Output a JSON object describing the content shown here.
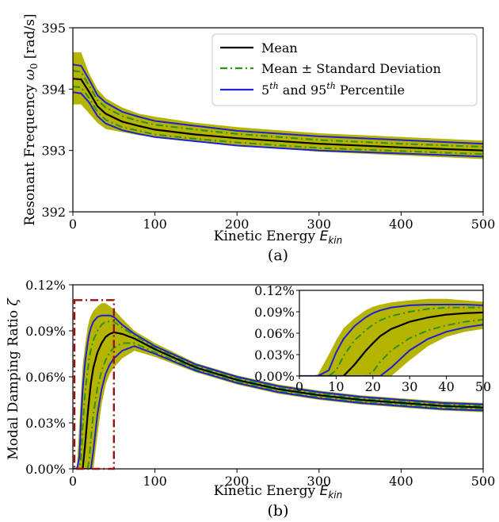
{
  "colors": {
    "band": "#b5b400",
    "mean": "#000000",
    "std": "#2f8f1f",
    "percentile": "#1f1fd6",
    "zoom_box": "#9b1111"
  },
  "chart_data": [
    {
      "type": "line",
      "panel_label": "(a)",
      "xlabel": "Kinetic Energy E_kin",
      "ylabel": "Resonant Frequency ω_0 [rad/s]",
      "xlim": [
        0,
        500
      ],
      "ylim": [
        392,
        395
      ],
      "xticks": [
        0,
        100,
        200,
        300,
        400,
        500
      ],
      "yticks": [
        392,
        393,
        394,
        395
      ],
      "ytick_labels": [
        "392",
        "393",
        "394",
        "395"
      ],
      "grid": false,
      "legend_position": "top-right",
      "legend": [
        {
          "label": "Mean",
          "series": "mean"
        },
        {
          "label": "Mean ± Standard Deviation",
          "series": "std"
        },
        {
          "label": "5th and 95th Percentile",
          "series": "percentile"
        }
      ],
      "x": [
        0,
        10,
        20,
        30,
        40,
        60,
        80,
        100,
        150,
        200,
        300,
        400,
        500
      ],
      "series": [
        {
          "key": "band_upper",
          "values": [
            394.6,
            394.6,
            394.25,
            394.0,
            393.85,
            393.7,
            393.6,
            393.55,
            393.45,
            393.38,
            393.28,
            393.22,
            393.16
          ]
        },
        {
          "key": "band_lower",
          "values": [
            393.75,
            393.75,
            393.6,
            393.45,
            393.35,
            393.3,
            393.25,
            393.22,
            393.15,
            393.08,
            392.98,
            392.92,
            392.86
          ]
        },
        {
          "key": "p95",
          "values": [
            394.4,
            394.38,
            394.15,
            393.9,
            393.78,
            393.63,
            393.55,
            393.48,
            393.4,
            393.32,
            393.23,
            393.17,
            393.11
          ]
        },
        {
          "key": "std_upper",
          "values": [
            394.3,
            394.28,
            394.05,
            393.82,
            393.7,
            393.56,
            393.48,
            393.42,
            393.34,
            393.27,
            393.17,
            393.11,
            393.06
          ]
        },
        {
          "key": "mean",
          "values": [
            394.17,
            394.16,
            393.95,
            393.72,
            393.6,
            393.47,
            393.4,
            393.34,
            393.26,
            393.2,
            393.11,
            393.05,
            393.0
          ]
        },
        {
          "key": "std_lower",
          "values": [
            394.04,
            394.03,
            393.85,
            393.63,
            393.5,
            393.38,
            393.32,
            393.26,
            393.19,
            393.13,
            393.04,
            392.99,
            392.94
          ]
        },
        {
          "key": "p5",
          "values": [
            393.95,
            393.93,
            393.78,
            393.56,
            393.44,
            393.33,
            393.27,
            393.22,
            393.15,
            393.08,
            393.0,
            392.95,
            392.9
          ]
        }
      ]
    },
    {
      "type": "line",
      "panel_label": "(b)",
      "xlabel": "Kinetic Energy E_kin",
      "ylabel": "Modal Damping Ratio ζ",
      "xlim": [
        0,
        500
      ],
      "ylim": [
        0,
        0.12
      ],
      "xticks": [
        0,
        100,
        200,
        300,
        400,
        500
      ],
      "yticks": [
        0,
        0.03,
        0.06,
        0.09,
        0.12
      ],
      "ytick_labels": [
        "0.00%",
        "0.03%",
        "0.06%",
        "0.09%",
        "0.12%"
      ],
      "grid": false,
      "zoom_box": {
        "x": [
          0,
          50
        ],
        "y": [
          0,
          0.11
        ]
      },
      "x": [
        0,
        3,
        5,
        8,
        10,
        12,
        15,
        18,
        20,
        22,
        25,
        30,
        35,
        40,
        45,
        50,
        60,
        75,
        100,
        150,
        200,
        250,
        300,
        350,
        400,
        450,
        500
      ],
      "series": [
        {
          "key": "band_upper",
          "values": [
            0,
            0,
            0.002,
            0.03,
            0.05,
            0.067,
            0.081,
            0.092,
            0.097,
            0.1,
            0.103,
            0.106,
            0.108,
            0.108,
            0.106,
            0.104,
            0.098,
            0.09,
            0.082,
            0.069,
            0.061,
            0.055,
            0.051,
            0.048,
            0.046,
            0.044,
            0.043
          ]
        },
        {
          "key": "p95",
          "values": [
            0,
            0,
            0,
            0.008,
            0.033,
            0.052,
            0.07,
            0.082,
            0.088,
            0.092,
            0.096,
            0.099,
            0.1,
            0.1,
            0.1,
            0.099,
            0.094,
            0.088,
            0.08,
            0.068,
            0.06,
            0.054,
            0.05,
            0.047,
            0.045,
            0.043,
            0.042
          ]
        },
        {
          "key": "std_upper",
          "values": [
            0,
            0,
            0,
            0,
            0.008,
            0.028,
            0.05,
            0.064,
            0.072,
            0.078,
            0.084,
            0.09,
            0.094,
            0.096,
            0.096,
            0.096,
            0.092,
            0.087,
            0.079,
            0.067,
            0.059,
            0.053,
            0.049,
            0.046,
            0.044,
            0.042,
            0.041
          ]
        },
        {
          "key": "mean",
          "values": [
            0,
            0,
            0,
            0,
            0,
            0,
            0.016,
            0.035,
            0.046,
            0.056,
            0.066,
            0.076,
            0.082,
            0.086,
            0.088,
            0.089,
            0.088,
            0.085,
            0.078,
            0.066,
            0.058,
            0.052,
            0.048,
            0.045,
            0.043,
            0.041,
            0.04
          ]
        },
        {
          "key": "std_lower",
          "values": [
            0,
            0,
            0,
            0,
            0,
            0,
            0,
            0,
            0.006,
            0.02,
            0.036,
            0.053,
            0.064,
            0.071,
            0.076,
            0.079,
            0.082,
            0.082,
            0.076,
            0.065,
            0.057,
            0.051,
            0.047,
            0.044,
            0.042,
            0.04,
            0.039
          ]
        },
        {
          "key": "p5",
          "values": [
            0,
            0,
            0,
            0,
            0,
            0,
            0,
            0,
            0,
            0,
            0.012,
            0.036,
            0.052,
            0.062,
            0.068,
            0.072,
            0.077,
            0.08,
            0.075,
            0.064,
            0.056,
            0.05,
            0.046,
            0.043,
            0.041,
            0.039,
            0.038
          ]
        },
        {
          "key": "band_lower",
          "values": [
            0,
            0,
            0,
            0,
            0,
            0,
            0,
            0,
            0,
            0,
            0,
            0.022,
            0.042,
            0.055,
            0.062,
            0.066,
            0.072,
            0.077,
            0.073,
            0.063,
            0.055,
            0.049,
            0.045,
            0.042,
            0.04,
            0.038,
            0.037
          ]
        }
      ],
      "inset": {
        "xlim": [
          0,
          50
        ],
        "ylim": [
          0,
          0.12
        ],
        "xticks": [
          0,
          10,
          20,
          30,
          40,
          50
        ],
        "yticks": [
          0,
          0.03,
          0.06,
          0.09,
          0.12
        ],
        "ytick_labels": [
          "0.00%",
          "0.03%",
          "0.06%",
          "0.09%",
          "0.12%"
        ]
      }
    }
  ]
}
